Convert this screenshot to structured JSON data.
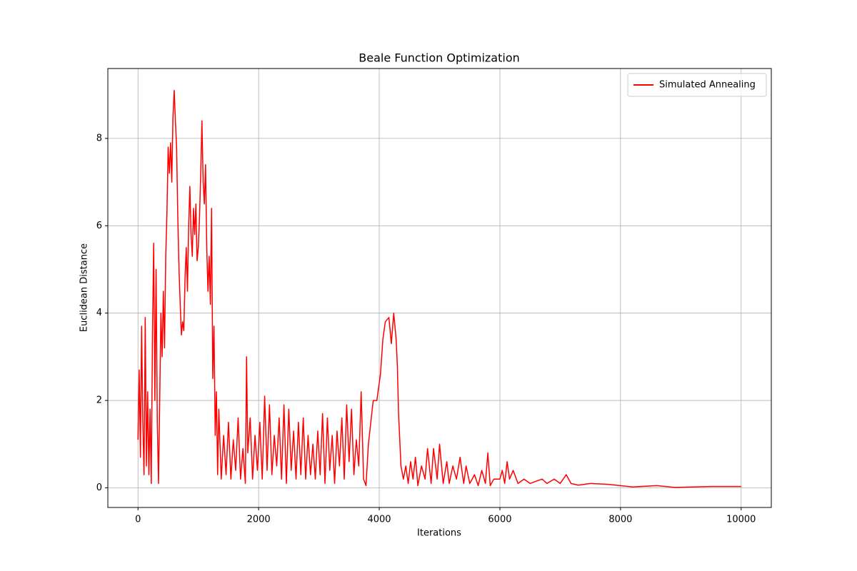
{
  "chart_data": {
    "type": "line",
    "title": "Beale Function Optimization",
    "x_label": "Iterations",
    "y_label": "Euclidean Distance",
    "x": [
      0,
      20,
      40,
      60,
      80,
      100,
      120,
      140,
      160,
      180,
      200,
      220,
      240,
      260,
      280,
      300,
      320,
      340,
      360,
      380,
      400,
      420,
      440,
      460,
      480,
      500,
      520,
      540,
      560,
      580,
      600,
      620,
      640,
      660,
      680,
      700,
      720,
      740,
      760,
      780,
      800,
      820,
      840,
      860,
      880,
      900,
      920,
      940,
      960,
      980,
      1000,
      1020,
      1040,
      1060,
      1080,
      1100,
      1120,
      1140,
      1160,
      1180,
      1200,
      1220,
      1240,
      1260,
      1280,
      1300,
      1320,
      1340,
      1380,
      1420,
      1460,
      1500,
      1540,
      1580,
      1620,
      1660,
      1700,
      1740,
      1780,
      1800,
      1820,
      1860,
      1900,
      1940,
      1980,
      2020,
      2060,
      2100,
      2140,
      2180,
      2220,
      2260,
      2300,
      2340,
      2380,
      2420,
      2460,
      2500,
      2540,
      2580,
      2620,
      2660,
      2700,
      2740,
      2780,
      2820,
      2860,
      2900,
      2940,
      2980,
      3020,
      3060,
      3100,
      3140,
      3180,
      3220,
      3260,
      3300,
      3340,
      3380,
      3420,
      3460,
      3500,
      3540,
      3580,
      3620,
      3660,
      3700,
      3740,
      3780,
      3820,
      3860,
      3900,
      3960,
      4020,
      4060,
      4100,
      4160,
      4200,
      4240,
      4280,
      4300,
      4320,
      4360,
      4400,
      4440,
      4480,
      4520,
      4560,
      4600,
      4640,
      4700,
      4760,
      4800,
      4860,
      4900,
      4960,
      5000,
      5060,
      5120,
      5160,
      5220,
      5280,
      5340,
      5400,
      5440,
      5500,
      5580,
      5640,
      5700,
      5760,
      5800,
      5840,
      5900,
      6000,
      6040,
      6080,
      6120,
      6160,
      6220,
      6300,
      6400,
      6500,
      6700,
      6780,
      6900,
      7000,
      7100,
      7180,
      7300,
      7500,
      7800,
      8200,
      8600,
      8900,
      9500,
      10000
    ],
    "series": [
      {
        "name": "Simulated Annealing",
        "color": "#ff0000",
        "values": [
          1.1,
          2.7,
          0.7,
          3.7,
          1.5,
          0.3,
          3.9,
          0.5,
          2.2,
          0.3,
          1.8,
          0.1,
          3.5,
          5.6,
          2.0,
          5.0,
          1.5,
          0.1,
          2.0,
          4.0,
          3.0,
          4.5,
          3.2,
          5.3,
          6.3,
          7.8,
          7.2,
          7.9,
          7.0,
          8.5,
          9.1,
          8.4,
          7.8,
          6.2,
          5.0,
          4.2,
          3.5,
          3.8,
          3.6,
          4.8,
          5.5,
          4.5,
          6.0,
          6.9,
          5.8,
          5.3,
          6.4,
          5.8,
          6.5,
          5.2,
          5.5,
          6.2,
          7.2,
          8.4,
          7.0,
          6.5,
          7.4,
          5.5,
          4.5,
          5.3,
          4.2,
          6.4,
          2.5,
          3.7,
          1.2,
          2.2,
          0.3,
          1.8,
          0.2,
          1.2,
          0.3,
          1.5,
          0.2,
          1.1,
          0.4,
          1.6,
          0.2,
          0.9,
          0.1,
          3.0,
          0.8,
          1.6,
          0.2,
          1.2,
          0.4,
          1.5,
          0.2,
          2.1,
          0.4,
          1.9,
          0.3,
          1.2,
          0.5,
          1.6,
          0.2,
          1.9,
          0.1,
          1.8,
          0.4,
          1.3,
          0.2,
          1.5,
          0.3,
          1.6,
          0.2,
          1.2,
          0.3,
          1.0,
          0.2,
          1.3,
          0.3,
          1.7,
          0.1,
          1.6,
          0.4,
          1.2,
          0.1,
          1.3,
          0.5,
          1.6,
          0.2,
          1.9,
          0.6,
          1.8,
          0.3,
          1.1,
          0.5,
          2.2,
          0.2,
          0.05,
          1.0,
          1.5,
          2.0,
          2.0,
          2.6,
          3.4,
          3.8,
          3.9,
          3.3,
          4.0,
          3.4,
          2.8,
          1.7,
          0.5,
          0.2,
          0.5,
          0.1,
          0.6,
          0.2,
          0.7,
          0.05,
          0.5,
          0.2,
          0.9,
          0.1,
          0.9,
          0.2,
          1.0,
          0.1,
          0.6,
          0.1,
          0.5,
          0.2,
          0.7,
          0.1,
          0.5,
          0.1,
          0.3,
          0.05,
          0.4,
          0.1,
          0.8,
          0.05,
          0.2,
          0.2,
          0.4,
          0.1,
          0.6,
          0.2,
          0.4,
          0.1,
          0.2,
          0.1,
          0.2,
          0.1,
          0.2,
          0.1,
          0.3,
          0.1,
          0.06,
          0.1,
          0.08,
          0.02,
          0.05,
          0.01,
          0.03,
          0.03
        ]
      }
    ],
    "xlim": [
      -500,
      10500
    ],
    "ylim": [
      -0.45,
      9.6
    ],
    "xticks": [
      0,
      2000,
      4000,
      6000,
      8000,
      10000
    ],
    "yticks": [
      0,
      2,
      4,
      6,
      8
    ],
    "grid": true,
    "legend": "upper right"
  }
}
